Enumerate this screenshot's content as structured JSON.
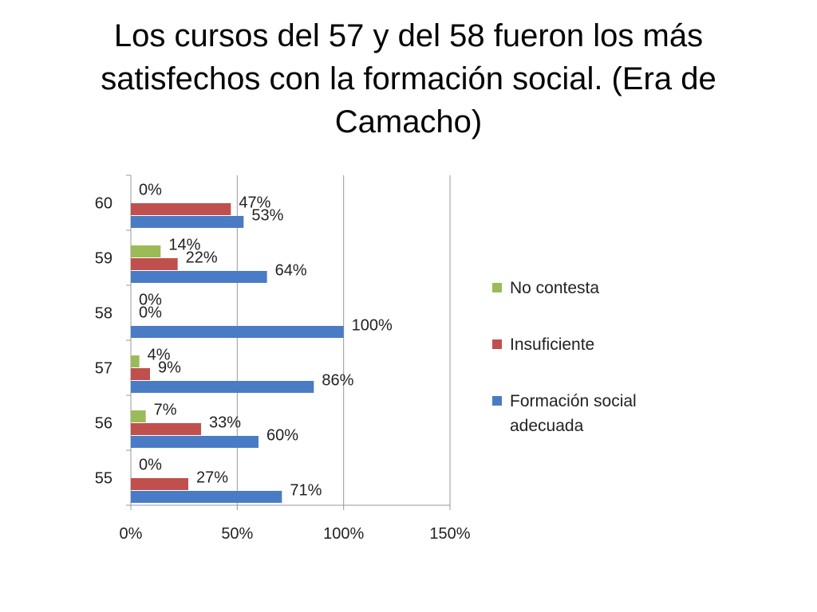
{
  "slide": {
    "title": "Los cursos del 57 y del 58 fueron los más satisfechos con la formación social. (Era de Camacho)"
  },
  "chart_data": {
    "type": "bar",
    "orientation": "horizontal",
    "categories": [
      "55",
      "56",
      "57",
      "58",
      "59",
      "60"
    ],
    "series": [
      {
        "name": "Formación social adecuada",
        "values": [
          71,
          60,
          86,
          100,
          64,
          53
        ],
        "color": "#4a7cc6"
      },
      {
        "name": "Insuficiente",
        "values": [
          27,
          33,
          9,
          0,
          22,
          47
        ],
        "color": "#c0504d"
      },
      {
        "name": "No contesta",
        "values": [
          0,
          7,
          4,
          0,
          14,
          0
        ],
        "color": "#9bbb59"
      }
    ],
    "xlim": [
      0,
      150
    ],
    "xticks": [
      "0%",
      "50%",
      "100%",
      "150%"
    ],
    "grid": "vertical",
    "legend_position": "right",
    "legend_order": [
      "No contesta",
      "Insuficiente",
      "Formación social adecuada"
    ],
    "value_suffix": "%"
  }
}
